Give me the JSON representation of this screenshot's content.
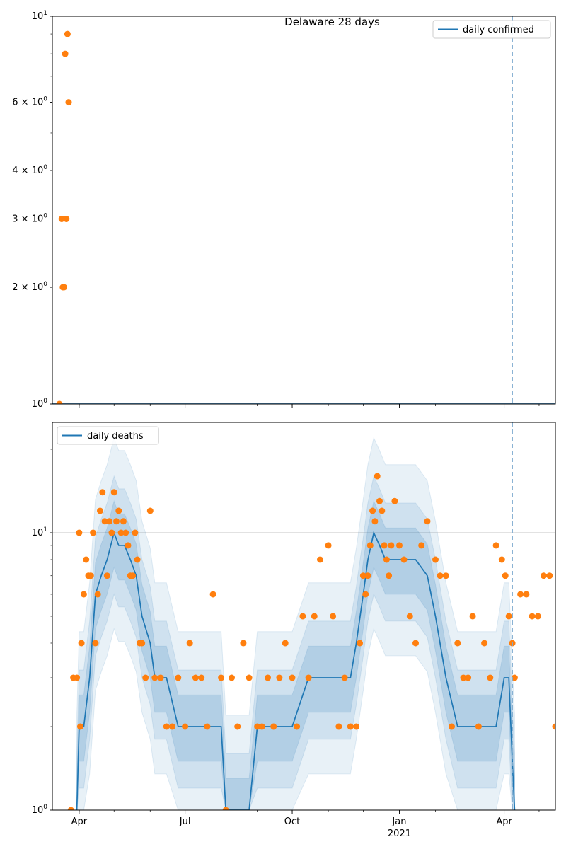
{
  "chart_data": [
    {
      "type": "scatter",
      "title": "Delaware 28 days",
      "yscale": "log",
      "ylim": [
        1,
        10
      ],
      "xlim": [
        "2020-03-09",
        "2021-05-15"
      ],
      "y_ticks": [
        {
          "value": 1,
          "label": "10",
          "sup": "0"
        },
        {
          "value": 2,
          "label": "2 × 10",
          "sup": "0"
        },
        {
          "value": 3,
          "label": "3 × 10",
          "sup": "0"
        },
        {
          "value": 4,
          "label": "4 × 10",
          "sup": "0"
        },
        {
          "value": 6,
          "label": "6 × 10",
          "sup": "0"
        },
        {
          "value": 10,
          "label": "10",
          "sup": "1"
        }
      ],
      "legend": {
        "placement": "upper right",
        "entries": [
          "daily confirmed"
        ]
      },
      "series": [
        {
          "name": "daily confirmed",
          "kind": "line",
          "color": "#1f77b4",
          "x": [
            "2020-03-09",
            "2021-05-15"
          ],
          "y": [
            1,
            1
          ]
        },
        {
          "kind": "scatter",
          "color": "#ff7f0e",
          "x": [
            "2020-03-15",
            "2020-03-17",
            "2020-03-18",
            "2020-03-19",
            "2020-03-20",
            "2020-03-21",
            "2020-03-22",
            "2020-03-23"
          ],
          "y": [
            1,
            3,
            2,
            2,
            8,
            3,
            9,
            6
          ]
        }
      ],
      "vline": {
        "x": "2021-04-08",
        "style": "dashed",
        "color": "#7fabcf"
      }
    },
    {
      "type": "scatter",
      "yscale": "log",
      "ylim": [
        1,
        25
      ],
      "xlim": [
        "2020-03-09",
        "2021-05-15"
      ],
      "y_ticks": [
        {
          "value": 1,
          "label": "10",
          "sup": "0"
        },
        {
          "value": 10,
          "label": "10",
          "sup": "1"
        }
      ],
      "hline": {
        "y": 10,
        "color": "#b0b0b0"
      },
      "x_ticks": [
        {
          "date": "2020-04-01",
          "label": "Apr"
        },
        {
          "date": "2020-07-01",
          "label": "Jul"
        },
        {
          "date": "2020-10-01",
          "label": "Oct"
        },
        {
          "date": "2021-01-01",
          "label": "Jan",
          "sublabel": "2021"
        },
        {
          "date": "2021-04-01",
          "label": "Apr"
        }
      ],
      "legend": {
        "placement": "upper left",
        "entries": [
          "daily deaths"
        ]
      },
      "series": [
        {
          "name": "daily deaths",
          "kind": "line",
          "color": "#1f77b4",
          "x": [
            "2020-03-30",
            "2020-04-01",
            "2020-04-05",
            "2020-04-10",
            "2020-04-15",
            "2020-04-20",
            "2020-04-25",
            "2020-05-01",
            "2020-05-05",
            "2020-05-10",
            "2020-05-15",
            "2020-05-20",
            "2020-05-25",
            "2020-06-01",
            "2020-06-05",
            "2020-06-15",
            "2020-06-25",
            "2020-07-05",
            "2020-07-15",
            "2020-07-25",
            "2020-08-01",
            "2020-08-05",
            "2020-08-15",
            "2020-08-25",
            "2020-09-01",
            "2020-09-15",
            "2020-10-01",
            "2020-10-15",
            "2020-10-25",
            "2020-11-01",
            "2020-11-10",
            "2020-11-20",
            "2020-11-25",
            "2020-12-01",
            "2020-12-05",
            "2020-12-10",
            "2020-12-15",
            "2020-12-20",
            "2020-12-25",
            "2021-01-01",
            "2021-01-15",
            "2021-01-25",
            "2021-02-01",
            "2021-02-10",
            "2021-02-20",
            "2021-03-01",
            "2021-03-15",
            "2021-03-25",
            "2021-04-01",
            "2021-04-05",
            "2021-04-08",
            "2021-04-10"
          ],
          "y": [
            1,
            2,
            2,
            3,
            6,
            7,
            8,
            10,
            9,
            9,
            8,
            7,
            5,
            4,
            3,
            3,
            2,
            2,
            2,
            2,
            2,
            1,
            1,
            1,
            2,
            2,
            2,
            3,
            3,
            3,
            3,
            3,
            4,
            6,
            8,
            10,
            9,
            8,
            8,
            8,
            8,
            7,
            5,
            3,
            2,
            2,
            2,
            2,
            3,
            3,
            1.5,
            1
          ]
        },
        {
          "kind": "scatter",
          "color": "#ff7f0e",
          "x": [
            "2020-03-25",
            "2020-03-27",
            "2020-03-30",
            "2020-04-01",
            "2020-04-02",
            "2020-04-03",
            "2020-04-05",
            "2020-04-07",
            "2020-04-09",
            "2020-04-11",
            "2020-04-13",
            "2020-04-15",
            "2020-04-17",
            "2020-04-19",
            "2020-04-21",
            "2020-04-23",
            "2020-04-25",
            "2020-04-27",
            "2020-04-29",
            "2020-05-01",
            "2020-05-03",
            "2020-05-05",
            "2020-05-07",
            "2020-05-09",
            "2020-05-11",
            "2020-05-13",
            "2020-05-15",
            "2020-05-17",
            "2020-05-19",
            "2020-05-21",
            "2020-05-23",
            "2020-05-25",
            "2020-05-28",
            "2020-06-01",
            "2020-06-05",
            "2020-06-10",
            "2020-06-15",
            "2020-06-20",
            "2020-06-25",
            "2020-07-01",
            "2020-07-05",
            "2020-07-10",
            "2020-07-15",
            "2020-07-20",
            "2020-07-25",
            "2020-08-01",
            "2020-08-05",
            "2020-08-10",
            "2020-08-15",
            "2020-08-20",
            "2020-08-25",
            "2020-09-01",
            "2020-09-05",
            "2020-09-10",
            "2020-09-15",
            "2020-09-20",
            "2020-09-25",
            "2020-10-01",
            "2020-10-05",
            "2020-10-10",
            "2020-10-15",
            "2020-10-20",
            "2020-10-25",
            "2020-11-01",
            "2020-11-05",
            "2020-11-10",
            "2020-11-15",
            "2020-11-20",
            "2020-11-25",
            "2020-11-28",
            "2020-12-01",
            "2020-12-03",
            "2020-12-05",
            "2020-12-07",
            "2020-12-09",
            "2020-12-11",
            "2020-12-13",
            "2020-12-15",
            "2020-12-17",
            "2020-12-19",
            "2020-12-21",
            "2020-12-23",
            "2020-12-25",
            "2020-12-28",
            "2021-01-01",
            "2021-01-05",
            "2021-01-10",
            "2021-01-15",
            "2021-01-20",
            "2021-01-25",
            "2021-02-01",
            "2021-02-05",
            "2021-02-10",
            "2021-02-15",
            "2021-02-20",
            "2021-02-25",
            "2021-03-01",
            "2021-03-05",
            "2021-03-10",
            "2021-03-15",
            "2021-03-20",
            "2021-03-25",
            "2021-03-30",
            "2021-04-02",
            "2021-04-05",
            "2021-04-08",
            "2021-04-10",
            "2021-04-15",
            "2021-04-20",
            "2021-04-25",
            "2021-04-30",
            "2021-05-05",
            "2021-05-10",
            "2021-05-15"
          ],
          "y": [
            1,
            3,
            3,
            10,
            2,
            4,
            6,
            8,
            7,
            7,
            10,
            4,
            6,
            12,
            14,
            11,
            7,
            11,
            10,
            14,
            11,
            12,
            10,
            11,
            10,
            9,
            7,
            7,
            10,
            8,
            4,
            4,
            3,
            12,
            3,
            3,
            2,
            2,
            3,
            2,
            4,
            3,
            3,
            2,
            6,
            3,
            1,
            3,
            2,
            4,
            3,
            2,
            2,
            3,
            2,
            3,
            4,
            3,
            2,
            5,
            3,
            5,
            8,
            9,
            5,
            2,
            3,
            2,
            2,
            4,
            7,
            6,
            7,
            9,
            12,
            11,
            16,
            13,
            12,
            9,
            8,
            7,
            9,
            13,
            9,
            8,
            5,
            4,
            9,
            11,
            8,
            7,
            7,
            2,
            4,
            3,
            3,
            5,
            2,
            4,
            3,
            9,
            8,
            7,
            5,
            4,
            3,
            6,
            6,
            5,
            5,
            7,
            7,
            2
          ]
        }
      ],
      "vline": {
        "x": "2021-04-08",
        "style": "dashed",
        "color": "#7fabcf"
      }
    }
  ]
}
